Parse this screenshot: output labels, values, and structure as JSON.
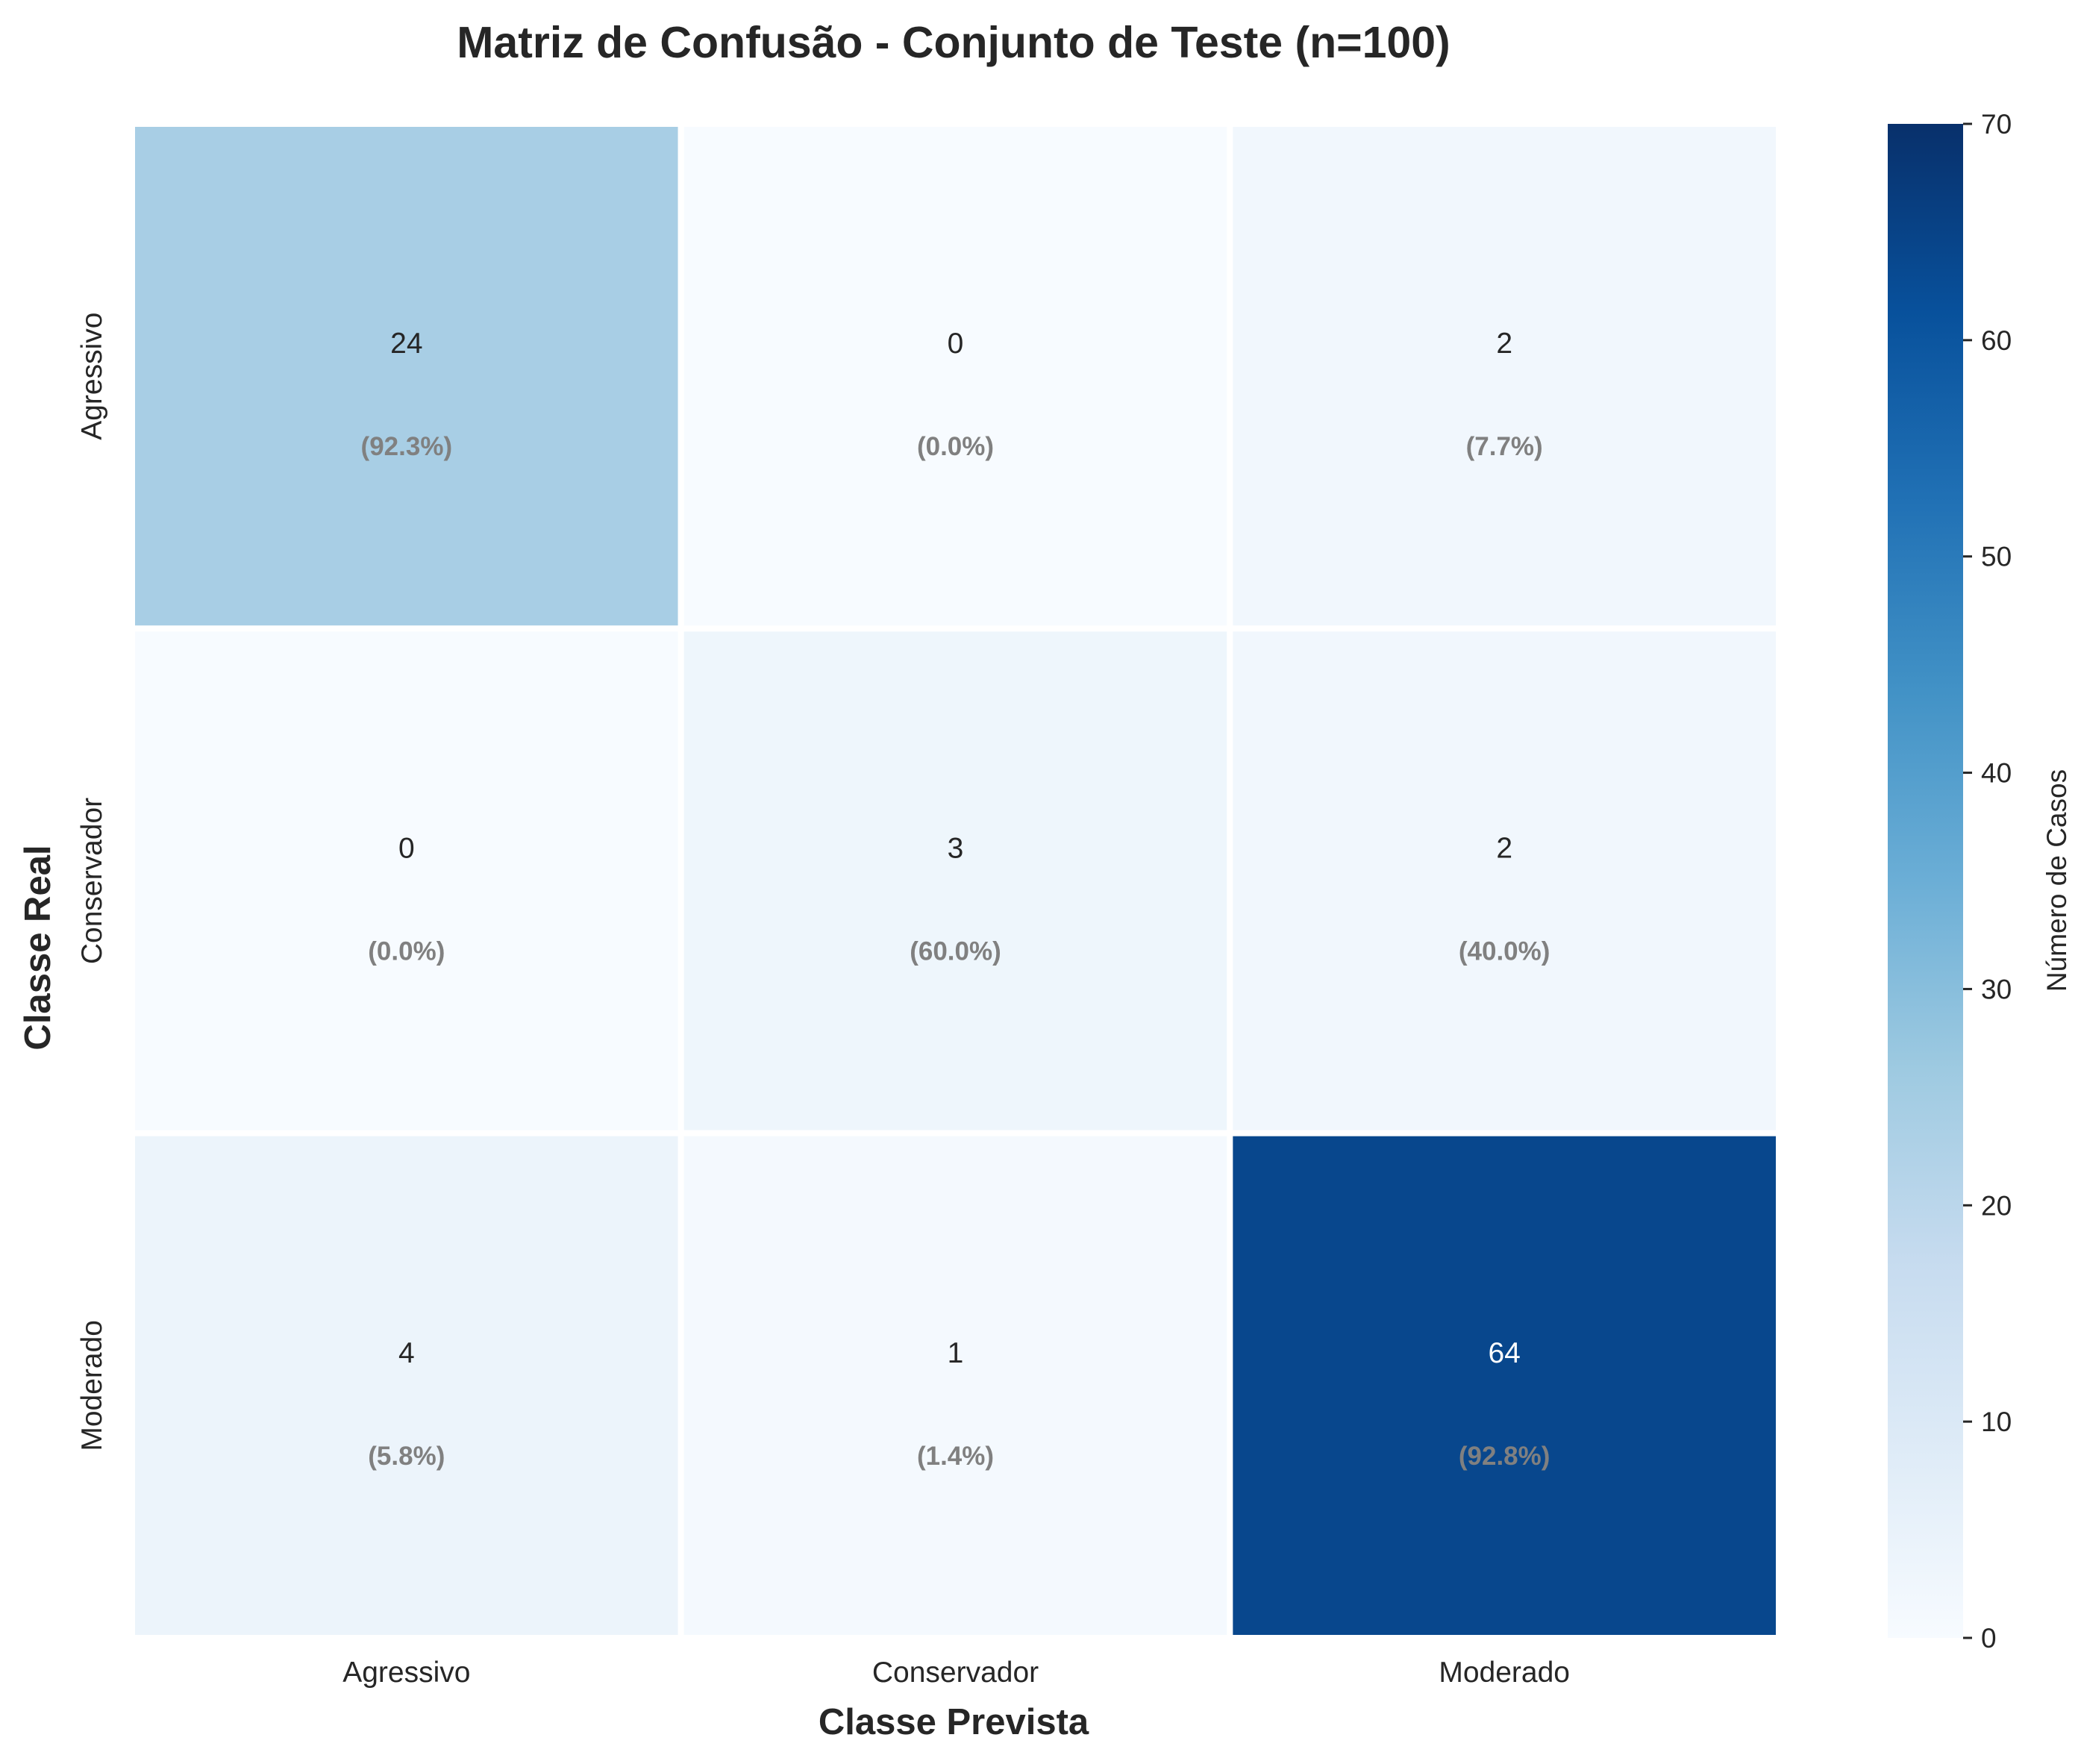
{
  "chart_data": {
    "type": "heatmap",
    "title": "Matriz de Confusão - Conjunto de Teste (n=100)",
    "xlabel": "Classe Prevista",
    "ylabel": "Classe Real",
    "x_categories": [
      "Agressivo",
      "Conservador",
      "Moderado"
    ],
    "y_categories": [
      "Agressivo",
      "Conservador",
      "Moderado"
    ],
    "values": [
      [
        24,
        0,
        2
      ],
      [
        0,
        3,
        2
      ],
      [
        4,
        1,
        64
      ]
    ],
    "percent_labels": [
      [
        "(92.3%)",
        "(0.0%)",
        "(7.7%)"
      ],
      [
        "(0.0%)",
        "(60.0%)",
        "(40.0%)"
      ],
      [
        "(5.8%)",
        "(1.4%)",
        "(92.8%)"
      ]
    ],
    "colorbar": {
      "label": "Número de Casos",
      "range": [
        0,
        70
      ],
      "ticks": [
        0,
        10,
        20,
        30,
        40,
        50,
        60,
        70
      ],
      "colormap": "Blues",
      "colors": [
        "#f7fbff",
        "#deebf7",
        "#c6dbef",
        "#9ecae1",
        "#6baed6",
        "#4292c6",
        "#2171b5",
        "#08519c",
        "#08306b"
      ]
    },
    "count_text_color_light": "#ffffff",
    "count_text_color_dark": "#262626",
    "percent_text_color": "#808080"
  }
}
